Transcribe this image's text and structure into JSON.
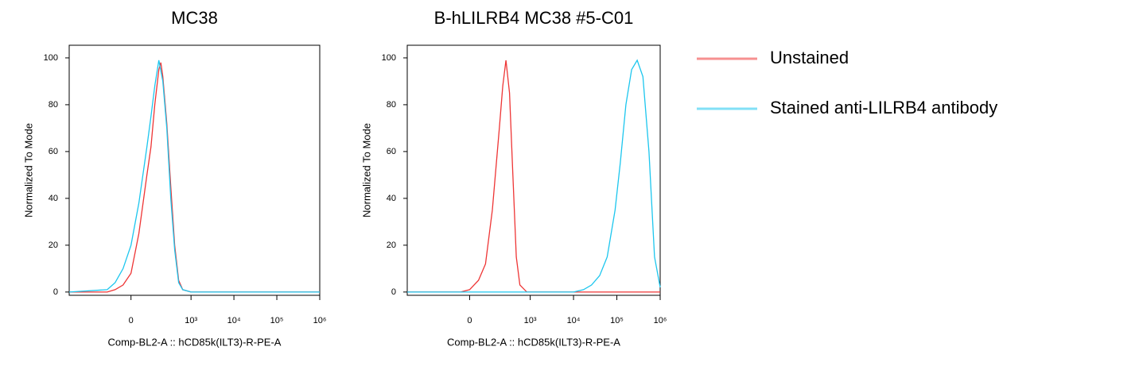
{
  "chart_data": [
    {
      "type": "line",
      "title": "MC38",
      "xlabel": "Comp-BL2-A :: hCD85k(ILT3)-R-PE-A",
      "ylabel": "Normalized To Mode",
      "xscale": "biexponential",
      "xlim": [
        -1100,
        1000000
      ],
      "ylim": [
        -1.4,
        105.4
      ],
      "xticks": [
        0,
        {
          "value": 1000,
          "label": "10³"
        },
        {
          "value": 10000,
          "label": "10⁴"
        },
        {
          "value": 100000,
          "label": "10⁵"
        },
        {
          "value": 1000000,
          "label": "10⁶"
        }
      ],
      "yticks": [
        0,
        20,
        40,
        60,
        80,
        100
      ],
      "series": [
        {
          "name": "Unstained",
          "color": "#ee3535",
          "x": [
            -1100,
            -132,
            -77,
            -35,
            0,
            35,
            77,
            103,
            132,
            169,
            190,
            213,
            267,
            333,
            413,
            513,
            638,
            1000,
            1000000
          ],
          "values": [
            0,
            0,
            1,
            3,
            8,
            25,
            50,
            62,
            80,
            95,
            98,
            92,
            72,
            45,
            20,
            5,
            1,
            0,
            0
          ]
        },
        {
          "name": "Stained anti-LILRB4 antibody",
          "color": "#1cc6ee",
          "x": [
            -1100,
            -132,
            -77,
            -35,
            0,
            35,
            77,
            103,
            132,
            169,
            213,
            267,
            333,
            413,
            513,
            638,
            1000,
            1000000
          ],
          "values": [
            0,
            1,
            4,
            10,
            20,
            38,
            62,
            75,
            88,
            99,
            90,
            70,
            40,
            18,
            4,
            1,
            0,
            0
          ]
        }
      ]
    },
    {
      "type": "line",
      "title": "B-hLILRB4 MC38 #5-C01",
      "xlabel": "Comp-BL2-A :: hCD85k(ILT3)-R-PE-A",
      "ylabel": "Normalized To Mode",
      "xscale": "biexponential",
      "xlim": [
        -1100,
        1000000
      ],
      "ylim": [
        -1.4,
        105.4
      ],
      "xticks": [
        0,
        {
          "value": 1000,
          "label": "10³"
        },
        {
          "value": 10000,
          "label": "10⁴"
        },
        {
          "value": 100000,
          "label": "10⁵"
        },
        {
          "value": 1000000,
          "label": "10⁶"
        }
      ],
      "yticks": [
        0,
        20,
        40,
        60,
        80,
        100
      ],
      "series": [
        {
          "color": "#ee3535",
          "x": [
            -1100,
            -40,
            0,
            39,
            76,
            122,
            186,
            226,
            270,
            328,
            395,
            475,
            576,
            835,
            1000000
          ],
          "values": [
            0,
            0,
            1,
            5,
            12,
            35,
            70,
            88,
            99,
            85,
            50,
            15,
            3,
            0,
            0
          ]
        },
        {
          "color": "#1cc6ee",
          "x": [
            -1100,
            10000,
            17000,
            26000,
            40000,
            60000,
            91000,
            120000,
            162000,
            219000,
            295000,
            400000,
            550000,
            740000,
            1000000
          ],
          "values": [
            0,
            0,
            1,
            3,
            7,
            15,
            35,
            55,
            80,
            95,
            99,
            92,
            60,
            15,
            2
          ]
        }
      ]
    }
  ]
}
